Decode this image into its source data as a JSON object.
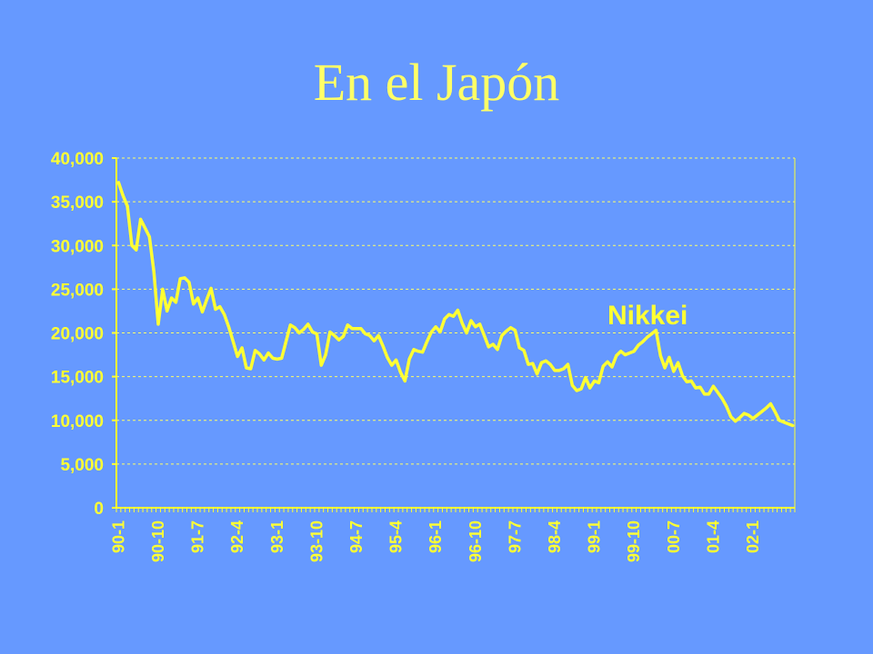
{
  "slide": {
    "title": "En el Japón"
  },
  "colors": {
    "background": "#6699ff",
    "line": "#ffff33",
    "text": "#ffff66",
    "grid": "#ffff66"
  },
  "chart_data": {
    "type": "line",
    "title": "",
    "xlabel": "",
    "ylabel": "",
    "ylim": [
      0,
      40000
    ],
    "y_ticks": [
      0,
      5000,
      10000,
      15000,
      20000,
      25000,
      30000,
      35000,
      40000
    ],
    "y_tick_labels": [
      "0",
      "5,000",
      "10,000",
      "15,000",
      "20,000",
      "25,000",
      "30,000",
      "35,000",
      "40,000"
    ],
    "x_tick_labels": [
      "90-1",
      "90-10",
      "91-7",
      "92-4",
      "93-1",
      "93-10",
      "94-7",
      "95-4",
      "96-1",
      "96-10",
      "97-7",
      "98-4",
      "99-1",
      "99-10",
      "00-7",
      "01-4",
      "02-1"
    ],
    "grid": "horizontal-dashed",
    "legend": "none",
    "series": [
      {
        "name": "Nikkei",
        "values": [
          37200,
          35700,
          34500,
          30000,
          29500,
          33000,
          32000,
          31000,
          27000,
          21000,
          25000,
          22500,
          24000,
          23500,
          26200,
          26300,
          25800,
          23300,
          24000,
          22400,
          23800,
          25100,
          22700,
          23000,
          22100,
          20700,
          19000,
          17300,
          18300,
          16000,
          15900,
          18000,
          17600,
          16900,
          17700,
          17100,
          17000,
          17100,
          19000,
          20900,
          20600,
          20000,
          20400,
          21000,
          20100,
          19900,
          16300,
          17500,
          20100,
          19700,
          19200,
          19600,
          20900,
          20500,
          20500,
          20500,
          19900,
          19700,
          19100,
          19700,
          18500,
          17200,
          16300,
          16900,
          15500,
          14500,
          17000,
          18100,
          17900,
          17800,
          19000,
          20100,
          20700,
          20100,
          21600,
          22100,
          21900,
          22600,
          21100,
          20000,
          21400,
          20700,
          21000,
          19700,
          18400,
          18700,
          18100,
          19700,
          20200,
          20600,
          20300,
          18300,
          18000,
          16400,
          16500,
          15300,
          16600,
          16800,
          16400,
          15700,
          15700,
          15900,
          16400,
          14000,
          13400,
          13600,
          14900,
          13700,
          14500,
          14300,
          16200,
          16700,
          16100,
          17400,
          17900,
          17500,
          17700,
          17900,
          18600,
          19000,
          19500,
          19900,
          20300,
          17400,
          16000,
          17200,
          15600,
          16600,
          15100,
          14400,
          14500,
          13700,
          13800,
          13000,
          13000,
          13900,
          13200,
          12500,
          11600,
          10400,
          9900,
          10300,
          10800,
          10600,
          10200,
          10600,
          11000,
          11400,
          11900,
          11000,
          10000,
          9800,
          9600,
          9400
        ]
      }
    ],
    "annotations": [
      {
        "text": "Nikkei"
      }
    ]
  }
}
